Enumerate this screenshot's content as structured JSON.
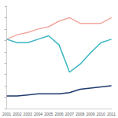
{
  "chart_data": {
    "type": "line",
    "categories": [
      "2001",
      "2002",
      "2003",
      "2004",
      "2005",
      "2006",
      "2007",
      "2008",
      "2009",
      "2010",
      "2011"
    ],
    "series": [
      {
        "color": "#f1a9a0",
        "values": [
          61,
          65,
          67,
          70,
          72,
          77,
          80,
          75,
          75,
          75,
          80
        ]
      },
      {
        "color": "#3bb6c2",
        "values": [
          61,
          58,
          58,
          61,
          64,
          56,
          32,
          39,
          49,
          58,
          61
        ]
      },
      {
        "color": "#1f3a6e",
        "values": [
          11,
          11,
          12,
          13,
          13,
          13,
          14,
          17,
          18,
          19,
          20
        ]
      }
    ],
    "ylim": [
      0,
      90
    ],
    "yticks": [
      0,
      10,
      20,
      30,
      40,
      50,
      60,
      70,
      80,
      90
    ],
    "grid": false,
    "tick_labels": "x"
  }
}
